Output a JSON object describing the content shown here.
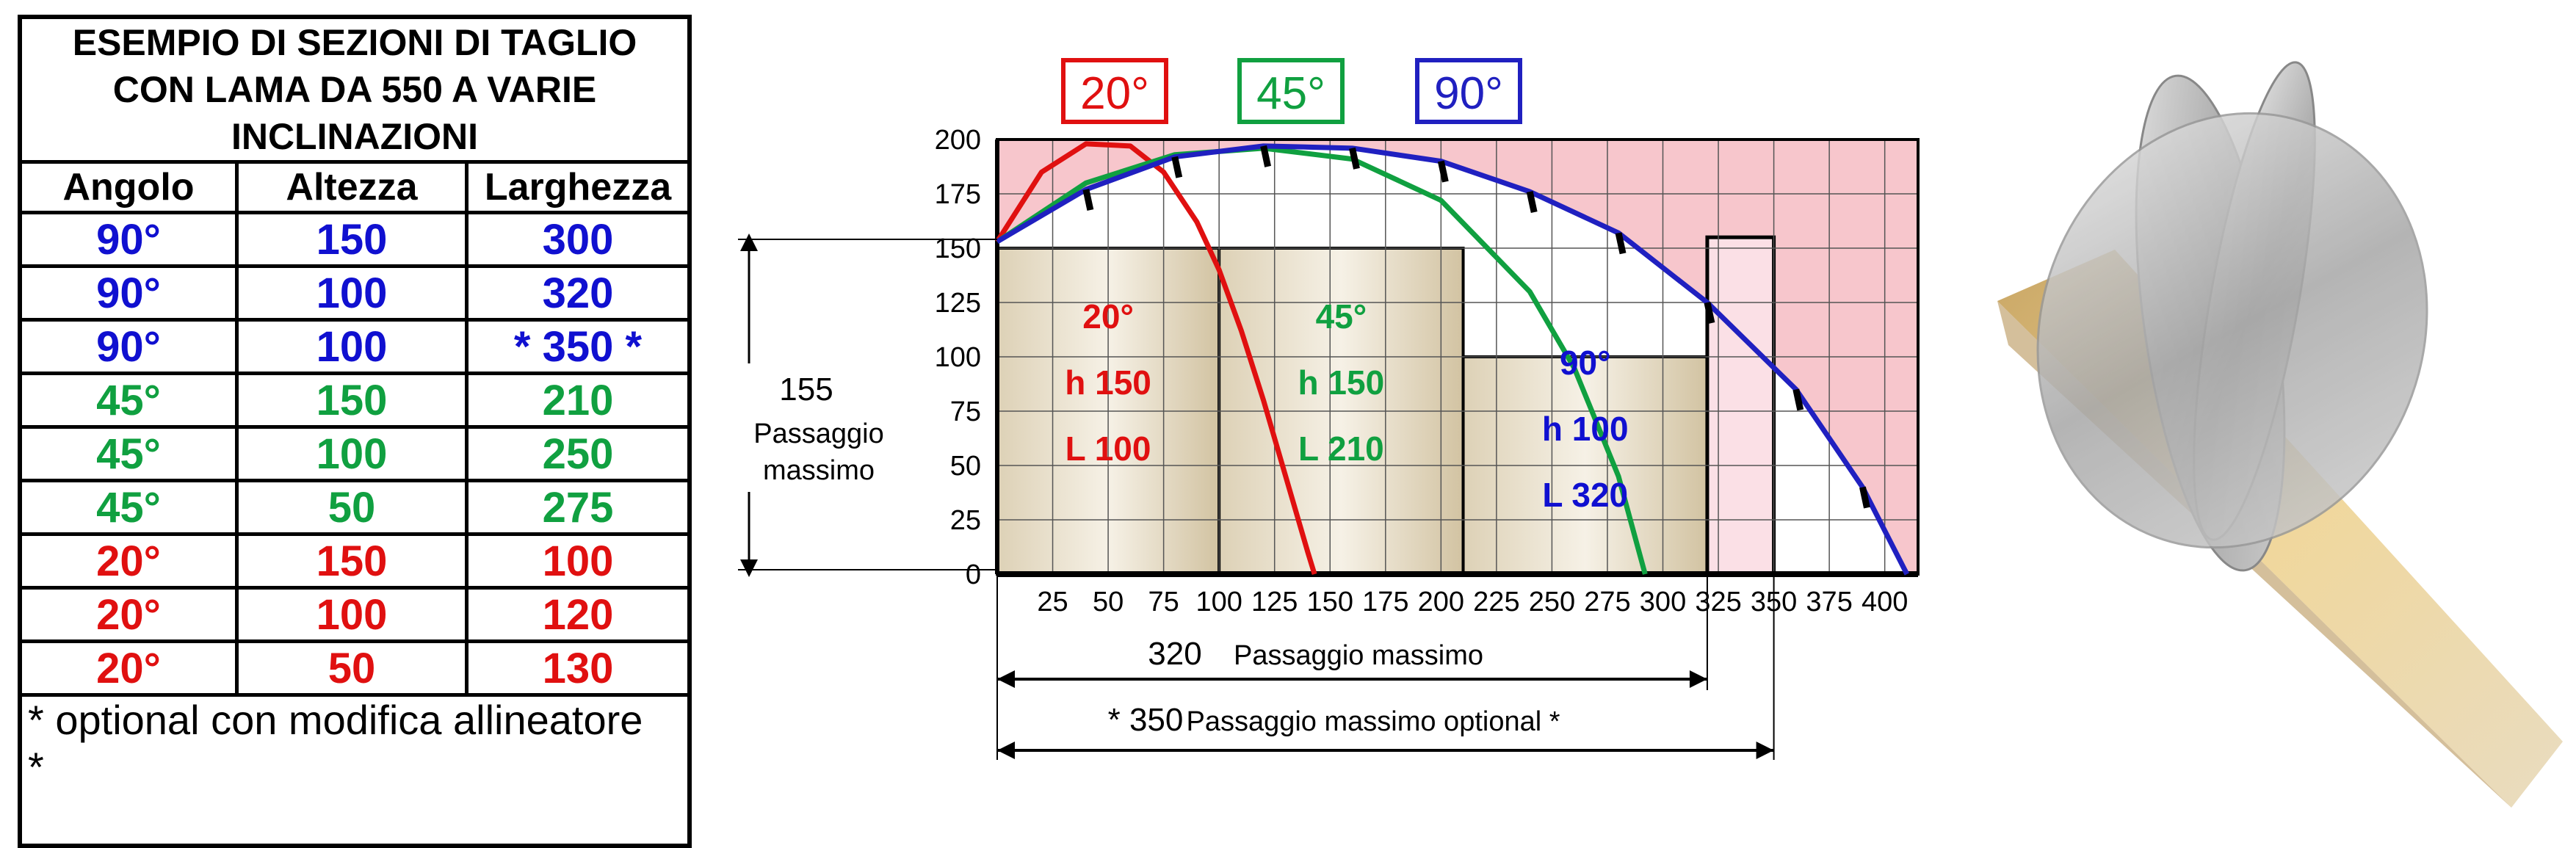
{
  "table": {
    "title_lines": [
      "ESEMPIO DI SEZIONI DI TAGLIO",
      "CON LAMA DA 550 A VARIE",
      "INCLINAZIONI"
    ],
    "headers": [
      "Angolo",
      "Altezza",
      "Larghezza"
    ],
    "rows": [
      {
        "angle": "90°",
        "height": "150",
        "width": "300",
        "color": "#1010d0"
      },
      {
        "angle": "90°",
        "height": "100",
        "width": "320",
        "color": "#1010d0"
      },
      {
        "angle": "90°",
        "height": "100",
        "width": "* 350 *",
        "color": "#1010d0"
      },
      {
        "angle": "45°",
        "height": "150",
        "width": "210",
        "color": "#10a040"
      },
      {
        "angle": "45°",
        "height": "100",
        "width": "250",
        "color": "#10a040"
      },
      {
        "angle": "45°",
        "height": "50",
        "width": "275",
        "color": "#10a040"
      },
      {
        "angle": "20°",
        "height": "150",
        "width": "100",
        "color": "#e01010"
      },
      {
        "angle": "20°",
        "height": "100",
        "width": "120",
        "color": "#e01010"
      },
      {
        "angle": "20°",
        "height": "50",
        "width": "130",
        "color": "#e01010"
      }
    ],
    "note_lines": [
      "* optional con modifica allineatore",
      "*"
    ]
  },
  "chart_data": {
    "type": "line",
    "xlim": [
      0,
      415
    ],
    "ylim": [
      0,
      200
    ],
    "x_ticks": [
      "25",
      "50",
      "75",
      "100",
      "125",
      "150",
      "175",
      "200",
      "225",
      "250",
      "275",
      "300",
      "325",
      "350",
      "375",
      "400"
    ],
    "y_ticks": [
      "0",
      "25",
      "50",
      "75",
      "100",
      "125",
      "150",
      "175",
      "200"
    ],
    "legend": [
      {
        "label": "20°",
        "color": "#e01010"
      },
      {
        "label": "45°",
        "color": "#10a040"
      },
      {
        "label": "90°",
        "color": "#2020c0"
      }
    ],
    "series": [
      {
        "name": "20°",
        "color": "#e01010",
        "x": [
          0,
          20,
          40,
          60,
          75,
          90,
          100,
          110,
          120,
          130,
          140,
          143
        ],
        "y": [
          153,
          185,
          198,
          197,
          185,
          162,
          140,
          112,
          80,
          45,
          10,
          0
        ]
      },
      {
        "name": "45°",
        "color": "#10a040",
        "x": [
          0,
          40,
          80,
          120,
          160,
          200,
          240,
          260,
          280,
          292
        ],
        "y": [
          153,
          180,
          193,
          196,
          191,
          172,
          130,
          95,
          45,
          0
        ]
      },
      {
        "name": "90°",
        "color": "#2020c0",
        "x": [
          0,
          40,
          80,
          120,
          160,
          200,
          240,
          280,
          320,
          360,
          390,
          410
        ],
        "y": [
          153,
          177,
          192,
          197,
          196,
          190,
          176,
          157,
          125,
          85,
          40,
          0
        ]
      }
    ],
    "sections": [
      {
        "angle": "20°",
        "h": "h 150",
        "L": "L 100",
        "color": "#e01010",
        "x0": 0,
        "x1": 100,
        "y": 150
      },
      {
        "angle": "45°",
        "h": "h 150",
        "L": "L 210",
        "color": "#10a040",
        "x0": 100,
        "x1": 210,
        "y": 150
      },
      {
        "angle": "90°",
        "h": "h 100",
        "L": "L 320",
        "color": "#1010d0",
        "x0": 210,
        "x1": 320,
        "y": 100
      },
      {
        "angle": "",
        "h": "",
        "L": "",
        "color": "#1010d0",
        "x0": 0,
        "x1": 320,
        "y": 150
      },
      {
        "angle": "",
        "h": "",
        "L": "",
        "color": "#1010d0",
        "x0": 320,
        "x1": 350,
        "y": 155
      }
    ],
    "annotations": {
      "height_value": "155",
      "height_label_1": "Passaggio",
      "height_label_2": "massimo",
      "width1_value": "320",
      "width1_label": "Passaggio massimo",
      "width2_value": "* 350",
      "width2_label": "Passaggio massimo optional *"
    }
  }
}
